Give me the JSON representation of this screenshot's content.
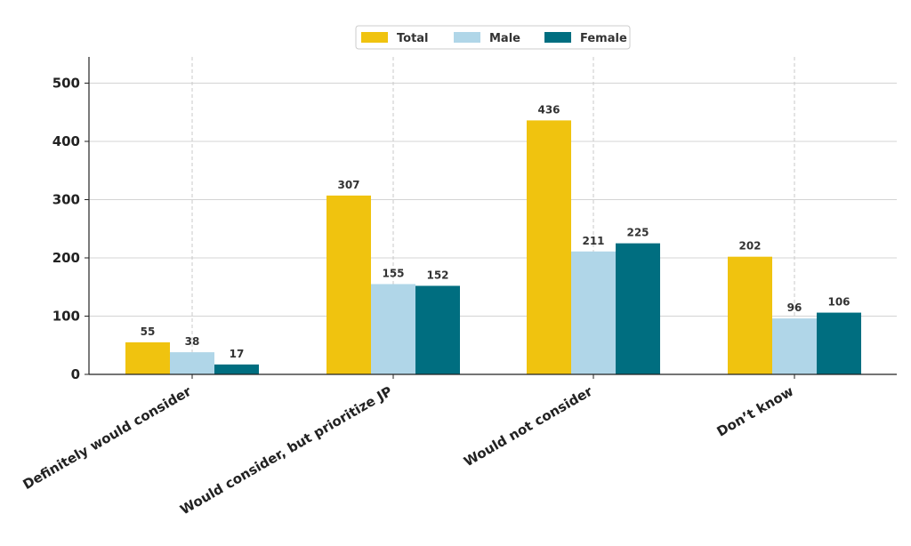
{
  "chart_data": {
    "type": "bar",
    "categories": [
      "Definitely would consider",
      "Would consider, but prioritize JP",
      "Would not consider",
      "Don’t know"
    ],
    "series": [
      {
        "name": "Total",
        "color": "#F0C30F",
        "values": [
          55,
          307,
          436,
          202
        ]
      },
      {
        "name": "Male",
        "color": "#B0D6E8",
        "values": [
          38,
          155,
          211,
          96
        ]
      },
      {
        "name": "Female",
        "color": "#006E80",
        "values": [
          17,
          152,
          225,
          106
        ]
      }
    ],
    "yticks": [
      0,
      100,
      200,
      300,
      400,
      500
    ],
    "ylim": [
      0,
      545
    ],
    "grid": "horizontal and vertical dashed",
    "legend_position": "top-center",
    "title": "",
    "xlabel": "",
    "ylabel": ""
  }
}
